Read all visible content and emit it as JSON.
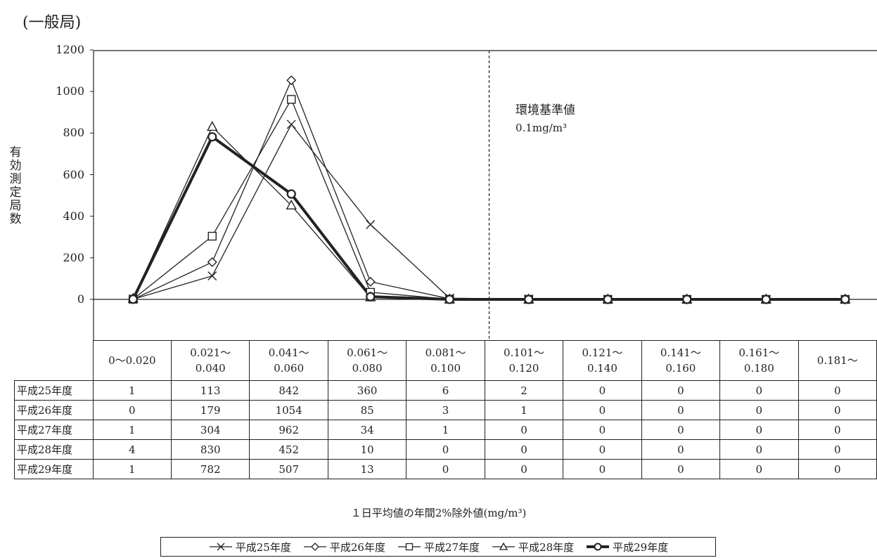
{
  "page_title": "(一般局)",
  "chart_data": {
    "type": "line",
    "ylabel": "有効測定局数",
    "xlabel": "１日平均値の年間2%除外値(mg/m³)",
    "ylim": [
      -200,
      1200
    ],
    "yticks": [
      1200,
      1000,
      800,
      600,
      400,
      200,
      0
    ],
    "categories": [
      [
        "0～0.020"
      ],
      [
        "0.021～",
        "0.040"
      ],
      [
        "0.041～",
        "0.060"
      ],
      [
        "0.061～",
        "0.080"
      ],
      [
        "0.081～",
        "0.100"
      ],
      [
        "0.101～",
        "0.120"
      ],
      [
        "0.121～",
        "0.140"
      ],
      [
        "0.141～",
        "0.160"
      ],
      [
        "0.161～",
        "0.180"
      ],
      [
        "0.181～"
      ]
    ],
    "series": [
      {
        "name": "平成25年度",
        "marker": "x",
        "values": [
          1,
          113,
          842,
          360,
          6,
          2,
          0,
          0,
          0,
          0
        ]
      },
      {
        "name": "平成26年度",
        "marker": "diamond",
        "values": [
          0,
          179,
          1054,
          85,
          3,
          1,
          0,
          0,
          0,
          0
        ]
      },
      {
        "name": "平成27年度",
        "marker": "square",
        "values": [
          1,
          304,
          962,
          34,
          1,
          0,
          0,
          0,
          0,
          0
        ]
      },
      {
        "name": "平成28年度",
        "marker": "triangle",
        "values": [
          4,
          830,
          452,
          10,
          0,
          0,
          0,
          0,
          0,
          0
        ]
      },
      {
        "name": "平成29年度",
        "marker": "circle",
        "bold": true,
        "values": [
          1,
          782,
          507,
          13,
          0,
          0,
          0,
          0,
          0,
          0
        ]
      }
    ],
    "reference_line": {
      "label": "環境基準値",
      "value_text": "0.1mg/m³",
      "position": "between 0.081～0.100 and 0.101～0.120",
      "style": "dashed"
    },
    "grid": false,
    "legend_position": "bottom"
  }
}
